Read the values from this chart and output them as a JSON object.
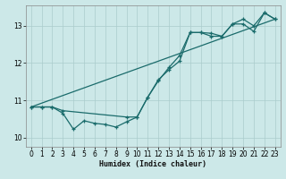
{
  "xlabel": "Humidex (Indice chaleur)",
  "bg_color": "#cce8e8",
  "grid_color": "#aacccc",
  "line_color": "#1a6b6b",
  "xlim": [
    -0.5,
    23.5
  ],
  "ylim": [
    9.75,
    13.55
  ],
  "yticks": [
    10,
    11,
    12,
    13
  ],
  "xticks": [
    0,
    1,
    2,
    3,
    4,
    5,
    6,
    7,
    8,
    9,
    10,
    11,
    12,
    13,
    14,
    15,
    16,
    17,
    18,
    19,
    20,
    21,
    22,
    23
  ],
  "line1_x": [
    0,
    23
  ],
  "line1_y": [
    10.82,
    13.18
  ],
  "line2_x": [
    0,
    1,
    2,
    3,
    4,
    5,
    6,
    7,
    8,
    9,
    10,
    11,
    12,
    13,
    14,
    15,
    16,
    17,
    18,
    19,
    20,
    21,
    22,
    23
  ],
  "line2_y": [
    10.82,
    10.82,
    10.82,
    10.65,
    10.22,
    10.45,
    10.38,
    10.35,
    10.28,
    10.42,
    10.55,
    11.08,
    11.55,
    11.82,
    12.05,
    12.82,
    12.82,
    12.8,
    12.72,
    13.05,
    13.05,
    12.85,
    13.35,
    13.18
  ],
  "line3_x": [
    0,
    1,
    2,
    3,
    9,
    10,
    11,
    12,
    13,
    14,
    15,
    16,
    17,
    18,
    19,
    20,
    21,
    22,
    23
  ],
  "line3_y": [
    10.82,
    10.82,
    10.82,
    10.72,
    10.55,
    10.55,
    11.08,
    11.52,
    11.88,
    12.2,
    12.82,
    12.82,
    12.72,
    12.72,
    13.05,
    13.18,
    13.0,
    13.35,
    13.18
  ]
}
